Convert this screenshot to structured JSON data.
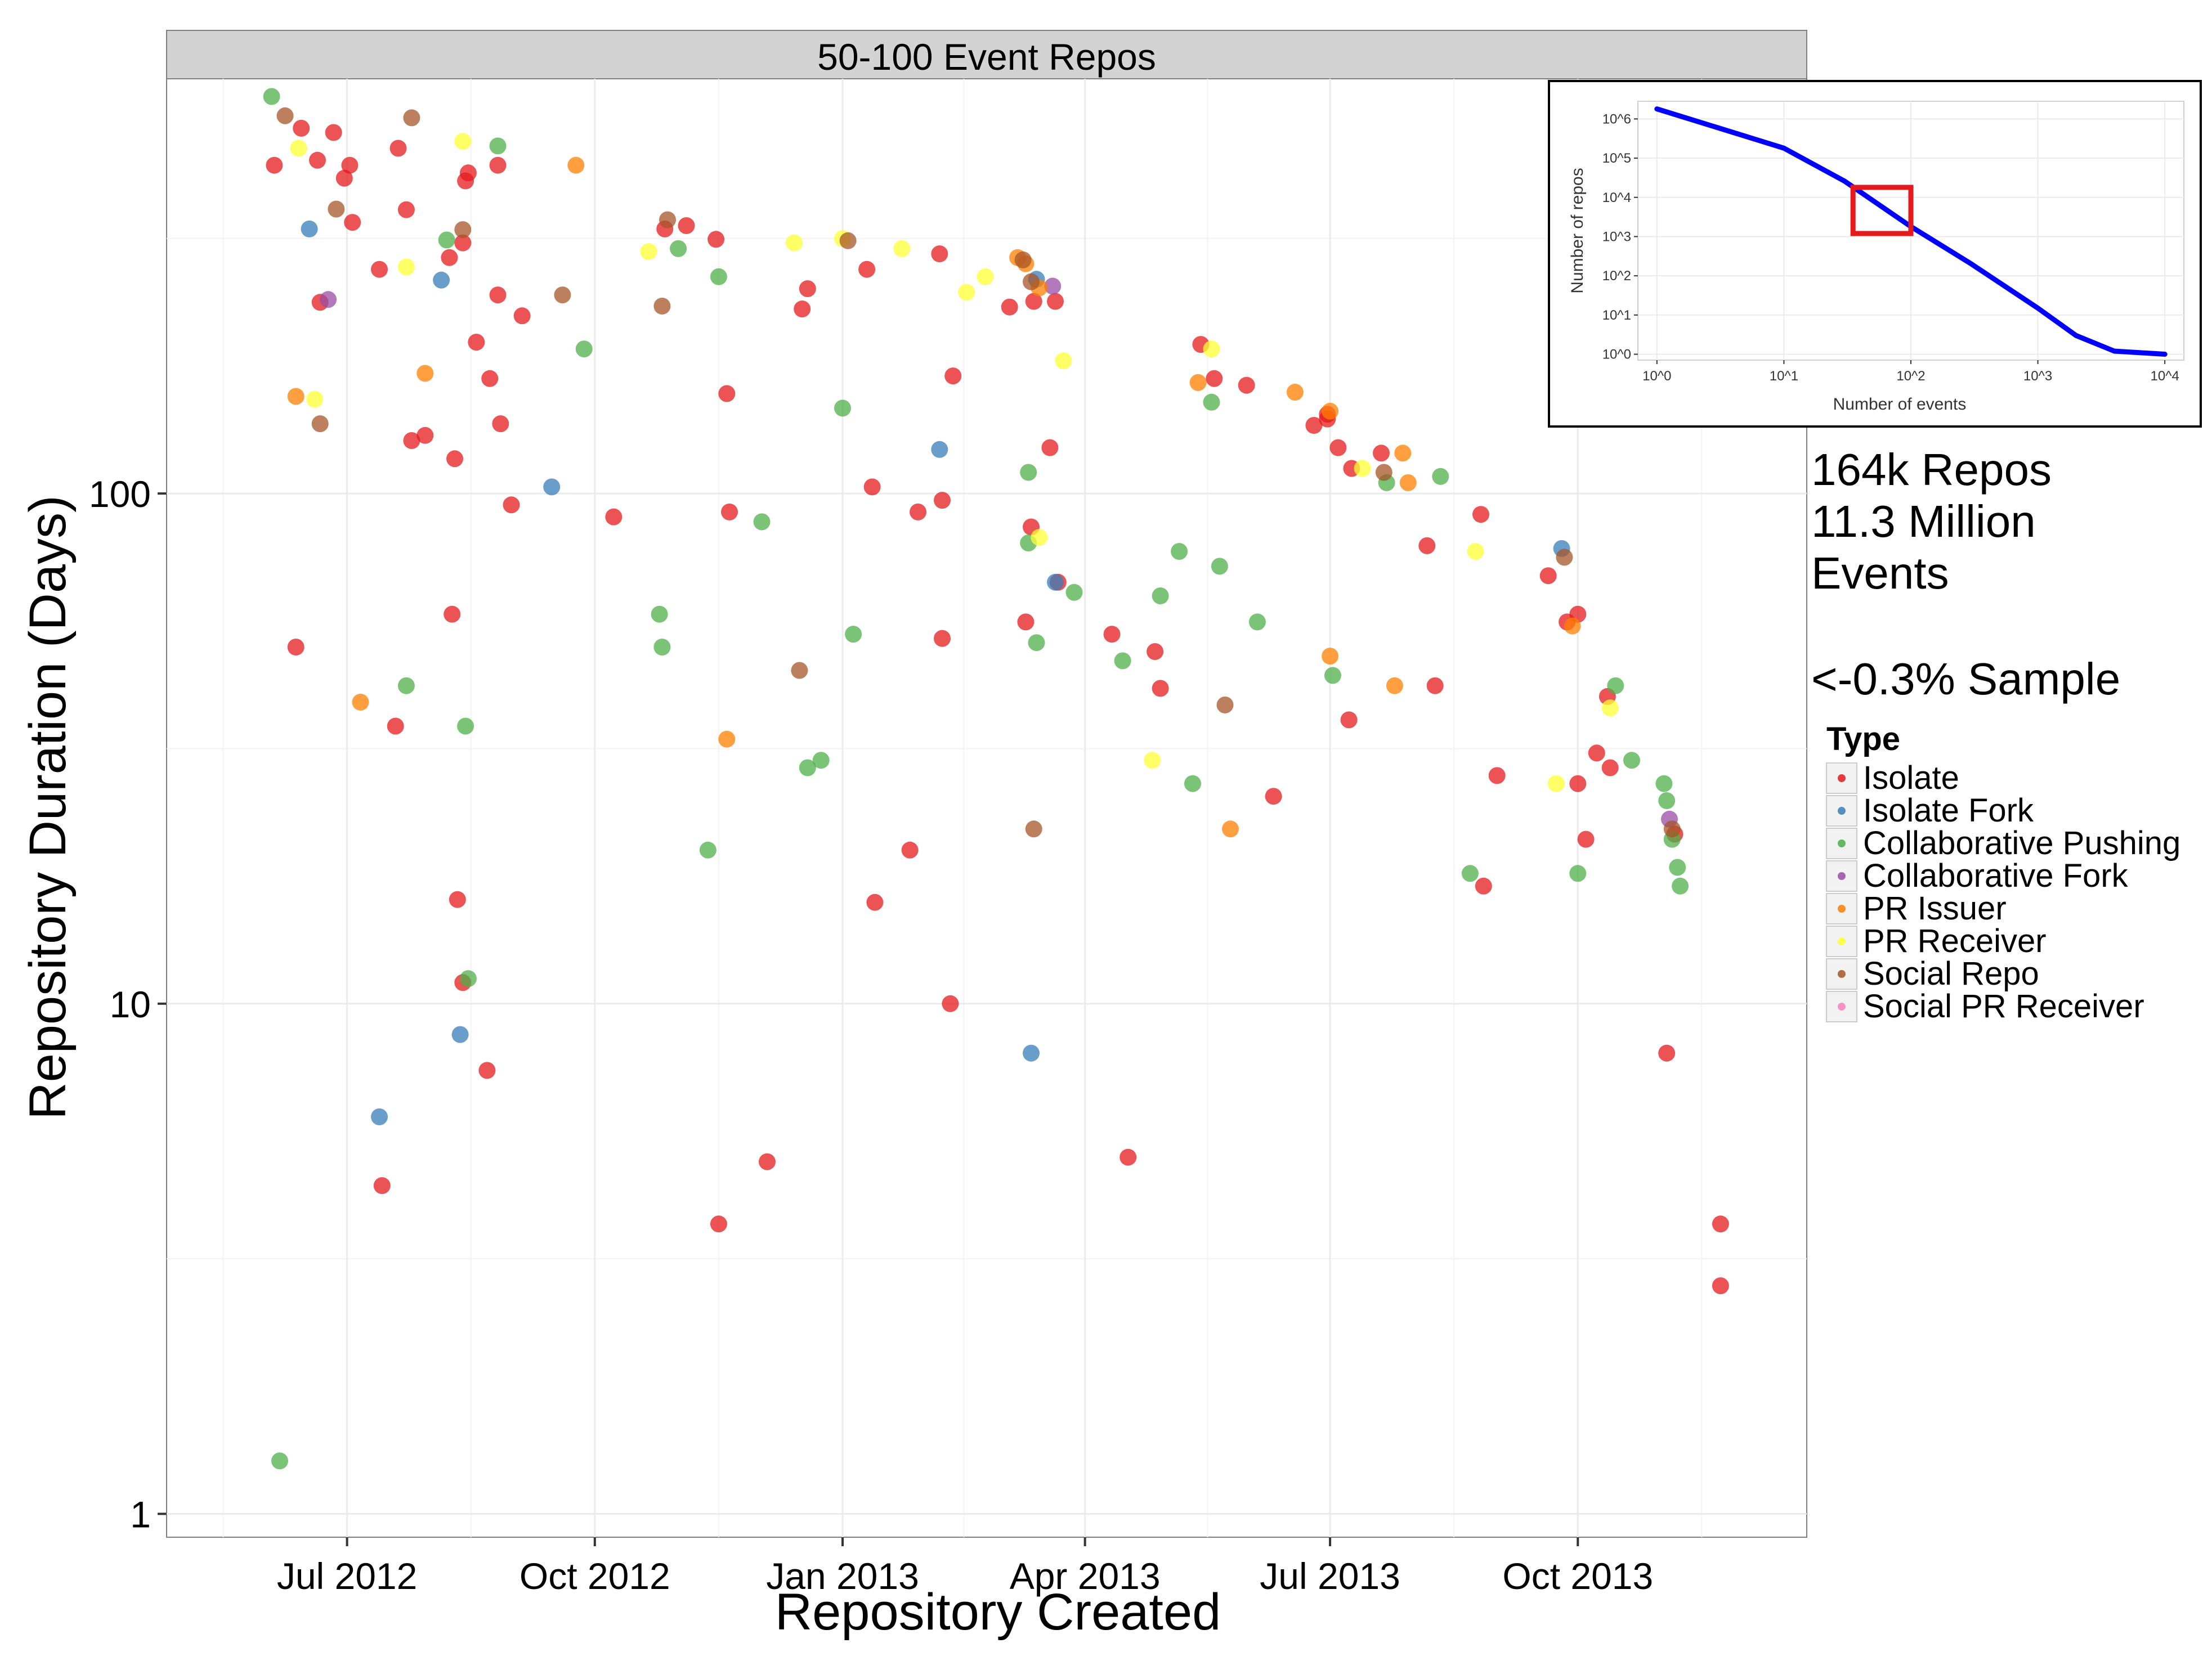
{
  "chart_data": {
    "type": "scatter",
    "facet_title": "50-100 Event Repos",
    "xlabel": "Repository Created",
    "ylabel": "Repository Duration (Days)",
    "y_scale": "log10",
    "ylim": [
      0.9,
      650
    ],
    "xlim": [
      "2012-04-25",
      "2013-12-25"
    ],
    "y_ticks": [
      1,
      10,
      100
    ],
    "y_tick_labels": [
      "1",
      "10",
      "100"
    ],
    "x_ticks": [
      "2012-07-01",
      "2012-10-01",
      "2013-01-01",
      "2013-04-01",
      "2013-07-01",
      "2013-10-01"
    ],
    "x_tick_labels": [
      "Jul 2012",
      "Oct 2012",
      "Jan 2013",
      "Apr 2013",
      "Jul 2013",
      "Oct 2013"
    ],
    "grid": true,
    "legend": {
      "title": "Type",
      "position": "right",
      "entries": [
        {
          "name": "Isolate",
          "color": "#E41A1C"
        },
        {
          "name": "Isolate Fork",
          "color": "#377EB8"
        },
        {
          "name": "Collaborative Pushing",
          "color": "#4DAF4A"
        },
        {
          "name": "Collaborative Fork",
          "color": "#984EA3"
        },
        {
          "name": "PR Issuer",
          "color": "#FF7F00"
        },
        {
          "name": "PR Receiver",
          "color": "#FFFF33"
        },
        {
          "name": "Social Repo",
          "color": "#A65628"
        },
        {
          "name": "Social PR Receiver",
          "color": "#F781BF"
        }
      ]
    },
    "annotation": [
      "164k Repos",
      "11.3 Million",
      "Events",
      "",
      "<-0.3% Sample"
    ],
    "series": [
      {
        "name": "Isolate",
        "color": "#E41A1C",
        "points": [
          [
            "2012-06-04",
            440
          ],
          [
            "2012-06-14",
            520
          ],
          [
            "2012-06-20",
            450
          ],
          [
            "2012-06-26",
            510
          ],
          [
            "2012-06-30",
            415
          ],
          [
            "2012-07-02",
            440
          ],
          [
            "2012-07-03",
            340
          ],
          [
            "2012-06-21",
            237
          ],
          [
            "2012-07-13",
            275
          ],
          [
            "2012-07-20",
            475
          ],
          [
            "2012-07-23",
            360
          ],
          [
            "2012-07-25",
            127
          ],
          [
            "2012-07-30",
            130
          ],
          [
            "2012-08-08",
            290
          ],
          [
            "2012-08-10",
            117
          ],
          [
            "2012-08-13",
            310
          ],
          [
            "2012-08-14",
            410
          ],
          [
            "2012-08-15",
            425
          ],
          [
            "2012-08-18",
            198
          ],
          [
            "2012-08-23",
            168
          ],
          [
            "2012-08-26",
            440
          ],
          [
            "2012-08-27",
            137
          ],
          [
            "2012-08-26",
            245
          ],
          [
            "2012-08-31",
            95
          ],
          [
            "2012-09-04",
            223
          ],
          [
            "2012-06-12",
            50
          ],
          [
            "2012-07-19",
            35
          ],
          [
            "2012-08-09",
            58
          ],
          [
            "2012-08-11",
            16
          ],
          [
            "2012-08-13",
            11
          ],
          [
            "2012-08-22",
            7.4
          ],
          [
            "2012-07-14",
            4.4
          ],
          [
            "2012-10-08",
            90
          ],
          [
            "2012-10-27",
            330
          ],
          [
            "2012-11-04",
            335
          ],
          [
            "2012-11-15",
            315
          ],
          [
            "2012-11-19",
            157
          ],
          [
            "2012-11-20",
            92
          ],
          [
            "2012-11-16",
            3.7
          ],
          [
            "2012-12-04",
            4.9
          ],
          [
            "2012-12-17",
            230
          ],
          [
            "2012-12-19",
            252
          ],
          [
            "2013-01-10",
            275
          ],
          [
            "2013-01-12",
            103
          ],
          [
            "2013-01-13",
            15.8
          ],
          [
            "2013-01-26",
            20
          ],
          [
            "2013-01-29",
            92
          ],
          [
            "2013-02-06",
            295
          ],
          [
            "2013-02-07",
            97
          ],
          [
            "2013-02-07",
            52
          ],
          [
            "2013-02-10",
            10
          ],
          [
            "2013-02-11",
            170
          ],
          [
            "2013-03-04",
            232
          ],
          [
            "2013-03-10",
            56
          ],
          [
            "2013-03-12",
            86
          ],
          [
            "2013-03-13",
            238
          ],
          [
            "2013-03-19",
            123
          ],
          [
            "2013-03-21",
            238
          ],
          [
            "2013-03-22",
            67
          ],
          [
            "2013-04-11",
            53
          ],
          [
            "2013-04-17",
            5
          ],
          [
            "2013-04-27",
            49
          ],
          [
            "2013-04-29",
            41.5
          ],
          [
            "2013-05-14",
            196
          ],
          [
            "2013-05-19",
            168
          ],
          [
            "2013-05-31",
            163
          ],
          [
            "2013-06-10",
            25.5
          ],
          [
            "2013-06-25",
            136
          ],
          [
            "2013-06-30",
            140
          ],
          [
            "2013-06-30",
            143
          ],
          [
            "2013-07-04",
            123
          ],
          [
            "2013-07-08",
            36
          ],
          [
            "2013-07-09",
            112
          ],
          [
            "2013-07-20",
            120
          ],
          [
            "2013-08-06",
            79
          ],
          [
            "2013-08-09",
            42
          ],
          [
            "2013-08-27",
            17
          ],
          [
            "2013-08-26",
            91
          ],
          [
            "2013-09-01",
            28
          ],
          [
            "2013-09-20",
            69
          ],
          [
            "2013-09-27",
            56
          ],
          [
            "2013-10-01",
            58
          ],
          [
            "2013-10-01",
            27
          ],
          [
            "2013-10-04",
            21
          ],
          [
            "2013-10-08",
            31
          ],
          [
            "2013-10-12",
            40
          ],
          [
            "2013-10-13",
            29
          ],
          [
            "2013-11-03",
            8
          ],
          [
            "2013-11-06",
            21.5
          ],
          [
            "2013-11-23",
            3.7
          ],
          [
            "2013-11-23",
            2.8
          ]
        ]
      },
      {
        "name": "Isolate Fork",
        "color": "#377EB8",
        "points": [
          [
            "2012-06-17",
            330
          ],
          [
            "2012-08-05",
            262
          ],
          [
            "2012-09-15",
            103
          ],
          [
            "2012-07-13",
            6
          ],
          [
            "2012-08-12",
            8.7
          ],
          [
            "2013-02-06",
            122
          ],
          [
            "2013-03-12",
            8
          ],
          [
            "2013-03-14",
            263
          ],
          [
            "2013-03-21",
            67
          ],
          [
            "2013-09-25",
            78
          ]
        ]
      },
      {
        "name": "Collaborative Pushing",
        "color": "#4DAF4A",
        "points": [
          [
            "2012-06-03",
            600
          ],
          [
            "2012-06-06",
            1.27
          ],
          [
            "2012-07-23",
            42
          ],
          [
            "2012-08-07",
            314
          ],
          [
            "2012-08-14",
            35
          ],
          [
            "2012-08-15",
            11.2
          ],
          [
            "2012-08-26",
            480
          ],
          [
            "2012-09-27",
            192
          ],
          [
            "2012-10-25",
            58
          ],
          [
            "2012-10-26",
            50
          ],
          [
            "2012-11-01",
            302
          ],
          [
            "2012-11-12",
            20
          ],
          [
            "2012-11-16",
            266
          ],
          [
            "2012-12-02",
            88
          ],
          [
            "2012-12-19",
            29
          ],
          [
            "2012-12-24",
            30
          ],
          [
            "2013-01-01",
            147
          ],
          [
            "2013-01-05",
            53
          ],
          [
            "2013-03-11",
            110
          ],
          [
            "2013-03-11",
            80
          ],
          [
            "2013-03-14",
            51
          ],
          [
            "2013-03-28",
            64
          ],
          [
            "2013-04-15",
            47
          ],
          [
            "2013-04-29",
            63
          ],
          [
            "2013-05-06",
            77
          ],
          [
            "2013-05-11",
            27
          ],
          [
            "2013-05-18",
            151
          ],
          [
            "2013-05-21",
            72
          ],
          [
            "2013-06-04",
            56
          ],
          [
            "2013-07-02",
            44
          ],
          [
            "2013-07-22",
            105
          ],
          [
            "2013-08-11",
            108
          ],
          [
            "2013-08-22",
            18
          ],
          [
            "2013-10-01",
            18
          ],
          [
            "2013-10-15",
            42
          ],
          [
            "2013-10-21",
            30
          ],
          [
            "2013-11-02",
            27
          ],
          [
            "2013-11-03",
            25
          ],
          [
            "2013-11-05",
            21
          ],
          [
            "2013-11-07",
            18.5
          ],
          [
            "2013-11-08",
            17
          ]
        ]
      },
      {
        "name": "Collaborative Fork",
        "color": "#984EA3",
        "points": [
          [
            "2012-06-24",
            240
          ],
          [
            "2013-03-20",
            255
          ],
          [
            "2013-11-04",
            23
          ]
        ]
      },
      {
        "name": "PR Issuer",
        "color": "#FF7F00",
        "points": [
          [
            "2012-06-12",
            155
          ],
          [
            "2012-07-06",
            39
          ],
          [
            "2012-07-30",
            172
          ],
          [
            "2012-09-24",
            440
          ],
          [
            "2012-11-19",
            33
          ],
          [
            "2013-03-07",
            290
          ],
          [
            "2013-03-10",
            282
          ],
          [
            "2013-03-15",
            253
          ],
          [
            "2013-05-13",
            165
          ],
          [
            "2013-06-18",
            158
          ],
          [
            "2013-07-01",
            145
          ],
          [
            "2013-07-01",
            48
          ],
          [
            "2013-07-25",
            42
          ],
          [
            "2013-07-28",
            120
          ],
          [
            "2013-07-30",
            105
          ],
          [
            "2013-09-29",
            55
          ],
          [
            "2013-05-25",
            22
          ]
        ]
      },
      {
        "name": "PR Receiver",
        "color": "#FFFF33",
        "points": [
          [
            "2012-06-13",
            475
          ],
          [
            "2012-06-19",
            153
          ],
          [
            "2012-07-23",
            278
          ],
          [
            "2012-08-13",
            490
          ],
          [
            "2012-10-21",
            298
          ],
          [
            "2012-12-14",
            310
          ],
          [
            "2013-01-01",
            316
          ],
          [
            "2013-01-23",
            302
          ],
          [
            "2013-02-16",
            248
          ],
          [
            "2013-02-23",
            266
          ],
          [
            "2013-03-15",
            82
          ],
          [
            "2013-03-24",
            182
          ],
          [
            "2013-04-26",
            30
          ],
          [
            "2013-05-18",
            192
          ],
          [
            "2013-07-13",
            112
          ],
          [
            "2013-08-24",
            77
          ],
          [
            "2013-09-23",
            27
          ],
          [
            "2013-10-13",
            38
          ]
        ]
      },
      {
        "name": "Social Repo",
        "color": "#A65628",
        "points": [
          [
            "2012-06-08",
            550
          ],
          [
            "2012-06-21",
            137
          ],
          [
            "2012-06-27",
            361
          ],
          [
            "2012-07-25",
            545
          ],
          [
            "2012-08-13",
            329
          ],
          [
            "2012-09-19",
            245
          ],
          [
            "2012-10-26",
            233
          ],
          [
            "2012-10-28",
            344
          ],
          [
            "2012-12-16",
            45
          ],
          [
            "2013-01-03",
            313
          ],
          [
            "2013-12-24",
            338
          ],
          [
            "2013-03-09",
            287
          ],
          [
            "2013-03-12",
            260
          ],
          [
            "2013-03-13",
            22
          ],
          [
            "2013-05-23",
            38.5
          ],
          [
            "2013-07-21",
            110
          ],
          [
            "2013-09-26",
            75
          ],
          [
            "2013-11-05",
            22
          ]
        ]
      },
      {
        "name": "Social PR Receiver",
        "color": "#F781BF",
        "points": []
      }
    ]
  },
  "inset": {
    "xlabel": "Number of events",
    "ylabel": "Number of repos",
    "x_tick_labels": [
      "10^0",
      "10^1",
      "10^2",
      "10^3",
      "10^4"
    ],
    "y_tick_labels": [
      "10^0",
      "10^1",
      "10^2",
      "10^3",
      "10^4",
      "10^5",
      "10^6"
    ],
    "line_color": "#0000FF",
    "highlight_color": "#E41A1C",
    "highlight_range": {
      "x": [
        35,
        100
      ],
      "y": [
        1200,
        18000
      ]
    },
    "curve": [
      [
        1,
        1800000
      ],
      [
        3,
        600000
      ],
      [
        10,
        180000
      ],
      [
        30,
        26000
      ],
      [
        100,
        1800
      ],
      [
        300,
        200
      ],
      [
        1000,
        15
      ],
      [
        2000,
        3
      ],
      [
        4000,
        1.2
      ],
      [
        10000,
        1
      ]
    ]
  }
}
